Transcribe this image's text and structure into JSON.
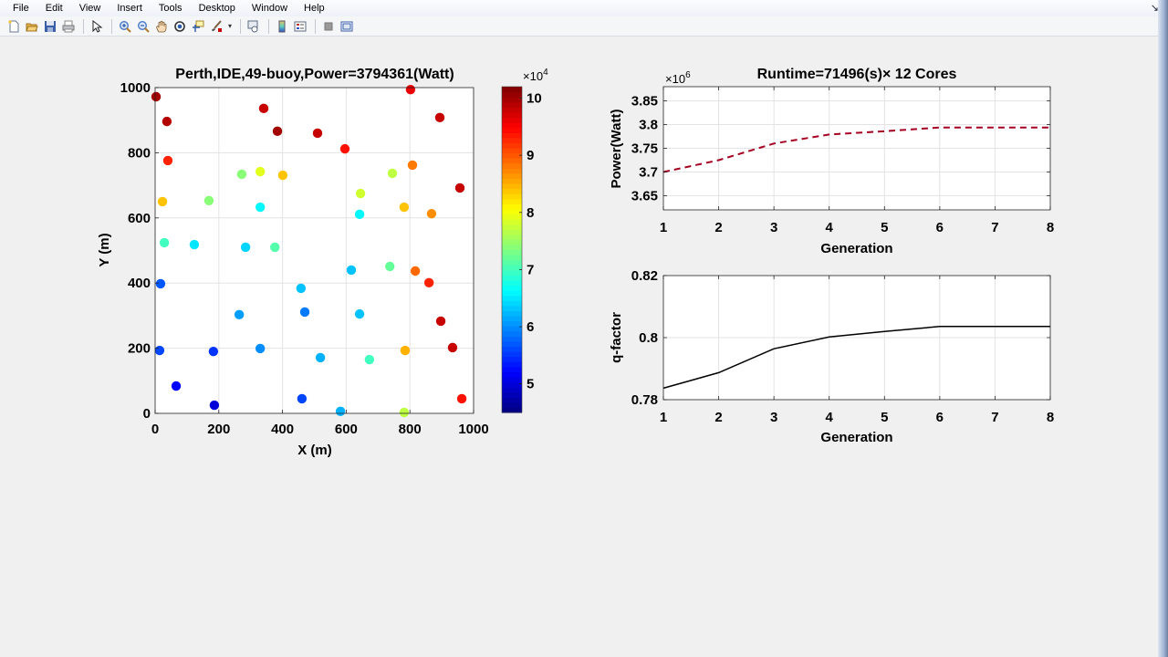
{
  "menu": {
    "items": [
      "File",
      "Edit",
      "View",
      "Insert",
      "Tools",
      "Desktop",
      "Window",
      "Help"
    ],
    "restore_icon": "restore-arrow-icon"
  },
  "toolbar": {
    "buttons": [
      {
        "name": "new-figure-icon"
      },
      {
        "name": "open-file-icon"
      },
      {
        "name": "save-figure-icon"
      },
      {
        "name": "print-figure-icon"
      },
      {
        "name": "edit-plot-arrow-icon"
      },
      {
        "name": "zoom-in-icon"
      },
      {
        "name": "zoom-out-icon"
      },
      {
        "name": "pan-hand-icon"
      },
      {
        "name": "rotate-3d-icon"
      },
      {
        "name": "data-cursor-icon"
      },
      {
        "name": "brush-icon"
      },
      {
        "name": "link-plot-icon"
      },
      {
        "name": "insert-colorbar-icon"
      },
      {
        "name": "insert-legend-icon"
      },
      {
        "name": "hide-plot-tools-icon"
      },
      {
        "name": "show-plot-tools-icon"
      }
    ]
  },
  "chart_data": [
    {
      "type": "scatter",
      "title": "Perth,IDE,49-buoy,Power=3794361(Watt)",
      "xlabel": "X (m)",
      "ylabel": "Y (m)",
      "xlim": [
        0,
        1000
      ],
      "ylim": [
        0,
        1000
      ],
      "xticks": [
        "0",
        "200",
        "400",
        "600",
        "800",
        "1000"
      ],
      "yticks": [
        "0",
        "200",
        "400",
        "600",
        "800",
        "1000"
      ],
      "grid": true,
      "colorbar": {
        "exponent_label": "×10^4",
        "ticks": [
          "5",
          "6",
          "7",
          "8",
          "9",
          "10"
        ],
        "range": [
          4.5,
          10.2
        ],
        "colormap": "jet"
      },
      "points": [
        {
          "x": 3,
          "y": 972,
          "c": 10.0
        },
        {
          "x": 37,
          "y": 896,
          "c": 9.9
        },
        {
          "x": 40,
          "y": 776,
          "c": 9.3
        },
        {
          "x": 23,
          "y": 650,
          "c": 8.4
        },
        {
          "x": 169,
          "y": 653,
          "c": 7.4
        },
        {
          "x": 29,
          "y": 524,
          "c": 7.0
        },
        {
          "x": 123,
          "y": 518,
          "c": 6.5
        },
        {
          "x": 272,
          "y": 734,
          "c": 7.4
        },
        {
          "x": 330,
          "y": 742,
          "c": 7.9
        },
        {
          "x": 401,
          "y": 731,
          "c": 8.4
        },
        {
          "x": 341,
          "y": 936,
          "c": 9.8
        },
        {
          "x": 384,
          "y": 866,
          "c": 10.0
        },
        {
          "x": 510,
          "y": 860,
          "c": 9.8
        },
        {
          "x": 596,
          "y": 812,
          "c": 9.4
        },
        {
          "x": 802,
          "y": 994,
          "c": 9.6
        },
        {
          "x": 894,
          "y": 908,
          "c": 9.8
        },
        {
          "x": 330,
          "y": 633,
          "c": 6.6
        },
        {
          "x": 284,
          "y": 510,
          "c": 6.4
        },
        {
          "x": 376,
          "y": 510,
          "c": 7.1
        },
        {
          "x": 645,
          "y": 675,
          "c": 7.8
        },
        {
          "x": 642,
          "y": 611,
          "c": 6.6
        },
        {
          "x": 745,
          "y": 737,
          "c": 7.7
        },
        {
          "x": 808,
          "y": 762,
          "c": 8.8
        },
        {
          "x": 782,
          "y": 633,
          "c": 8.4
        },
        {
          "x": 868,
          "y": 613,
          "c": 8.7
        },
        {
          "x": 957,
          "y": 692,
          "c": 9.8
        },
        {
          "x": 17,
          "y": 398,
          "c": 5.7
        },
        {
          "x": 14,
          "y": 193,
          "c": 5.6
        },
        {
          "x": 183,
          "y": 190,
          "c": 5.5
        },
        {
          "x": 66,
          "y": 84,
          "c": 5.2
        },
        {
          "x": 186,
          "y": 25,
          "c": 5.0
        },
        {
          "x": 264,
          "y": 303,
          "c": 6.1
        },
        {
          "x": 330,
          "y": 199,
          "c": 6.0
        },
        {
          "x": 458,
          "y": 384,
          "c": 6.3
        },
        {
          "x": 470,
          "y": 311,
          "c": 5.9
        },
        {
          "x": 519,
          "y": 171,
          "c": 6.2
        },
        {
          "x": 461,
          "y": 45,
          "c": 5.6
        },
        {
          "x": 582,
          "y": 6,
          "c": 6.2
        },
        {
          "x": 616,
          "y": 440,
          "c": 6.3
        },
        {
          "x": 737,
          "y": 451,
          "c": 7.2
        },
        {
          "x": 817,
          "y": 437,
          "c": 8.9
        },
        {
          "x": 860,
          "y": 401,
          "c": 9.3
        },
        {
          "x": 642,
          "y": 305,
          "c": 6.3
        },
        {
          "x": 673,
          "y": 165,
          "c": 7.0
        },
        {
          "x": 785,
          "y": 193,
          "c": 8.5
        },
        {
          "x": 897,
          "y": 283,
          "c": 9.8
        },
        {
          "x": 934,
          "y": 202,
          "c": 9.8
        },
        {
          "x": 782,
          "y": 3,
          "c": 7.7
        },
        {
          "x": 963,
          "y": 45,
          "c": 9.4
        }
      ]
    },
    {
      "type": "line",
      "title": "Runtime=71496(s)× 12 Cores",
      "xlabel": "Generation",
      "ylabel": "Power(Watt)",
      "exponent_label": "×10^6",
      "x": [
        1,
        2,
        3,
        4,
        5,
        6,
        7,
        8
      ],
      "series": [
        {
          "name": "Power",
          "values": [
            3.7,
            3.725,
            3.76,
            3.779,
            3.786,
            3.794,
            3.794,
            3.794
          ],
          "color": "#a50021",
          "style": "dashed"
        }
      ],
      "xlim": [
        1,
        8
      ],
      "ylim": [
        3.62,
        3.88
      ],
      "xticks": [
        "1",
        "2",
        "3",
        "4",
        "5",
        "6",
        "7",
        "8"
      ],
      "yticks": [
        "3.65",
        "3.7",
        "3.75",
        "3.8",
        "3.85"
      ],
      "grid": true
    },
    {
      "type": "line",
      "title": "",
      "xlabel": "Generation",
      "ylabel": "q-factor",
      "x": [
        1,
        2,
        3,
        4,
        5,
        6,
        7,
        8
      ],
      "series": [
        {
          "name": "q-factor",
          "values": [
            0.7837,
            0.7887,
            0.7964,
            0.8002,
            0.802,
            0.8036,
            0.8036,
            0.8036
          ],
          "color": "#000000",
          "style": "solid"
        }
      ],
      "xlim": [
        1,
        8
      ],
      "ylim": [
        0.78,
        0.82
      ],
      "xticks": [
        "1",
        "2",
        "3",
        "4",
        "5",
        "6",
        "7",
        "8"
      ],
      "yticks": [
        "0.78",
        "0.8",
        "0.82"
      ],
      "grid": true
    }
  ]
}
